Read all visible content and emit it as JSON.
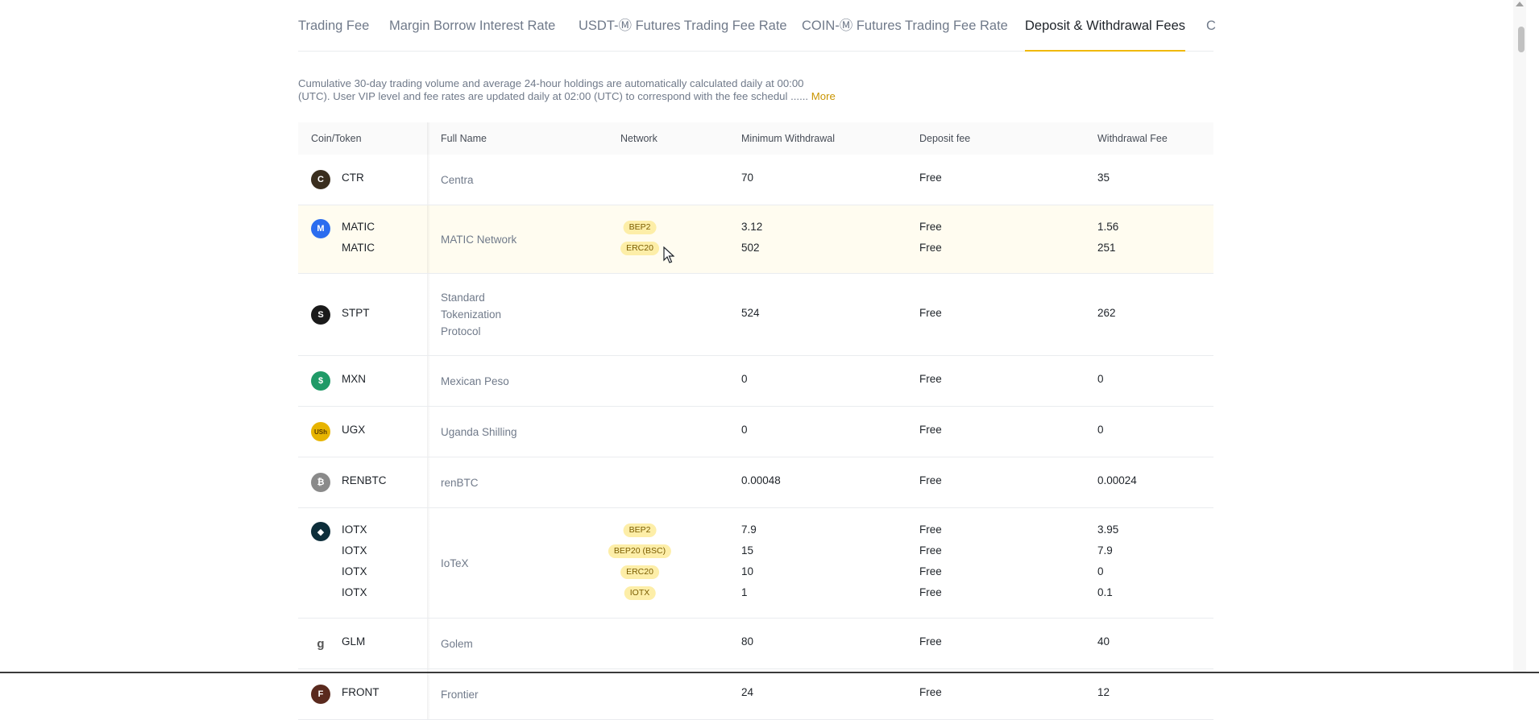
{
  "tabs": [
    {
      "label": "Trading Fee",
      "active": false
    },
    {
      "label": "Margin Borrow Interest Rate",
      "active": false
    },
    {
      "label": "USDT-Ⓜ Futures Trading Fee Rate",
      "active": false
    },
    {
      "label": "COIN-Ⓜ Futures Trading Fee Rate",
      "active": false
    },
    {
      "label": "Deposit & Withdrawal Fees",
      "active": true
    },
    {
      "label": "C",
      "active": false
    }
  ],
  "notice": {
    "line1": "Cumulative 30-day trading volume and average 24-hour holdings are automatically calculated daily at 00:00",
    "line2": "(UTC). User VIP level and fee rates are updated daily at 02:00 (UTC) to correspond with the fee schedul ......",
    "more_label": "More"
  },
  "table": {
    "headers": {
      "coin": "Coin/Token",
      "full_name": "Full Name",
      "network": "Network",
      "min_withdrawal": "Minimum Withdrawal",
      "deposit_fee": "Deposit fee",
      "withdrawal_fee": "Withdrawal Fee"
    },
    "rows": [
      {
        "icon": "ctr-coin-icon",
        "icon_color": "#3a2e1e",
        "icon_glyph": "C",
        "full_name": [
          "Centra"
        ],
        "entries": [
          {
            "coin": "CTR",
            "network": "",
            "min": "70",
            "dep": "Free",
            "wd": "35"
          }
        ]
      },
      {
        "icon": "matic-coin-icon",
        "icon_color": "#2b6def",
        "icon_glyph": "M",
        "full_name": [
          "MATIC Network"
        ],
        "hover": true,
        "entries": [
          {
            "coin": "MATIC",
            "network": "BEP2",
            "min": "3.12",
            "dep": "Free",
            "wd": "1.56"
          },
          {
            "coin": "MATIC",
            "network": "ERC20",
            "min": "502",
            "dep": "Free",
            "wd": "251"
          }
        ]
      },
      {
        "icon": "stpt-coin-icon",
        "icon_color": "#1a1a1a",
        "icon_glyph": "S",
        "full_name": [
          "Standard",
          "Tokenization",
          "Protocol"
        ],
        "entries": [
          {
            "coin": "STPT",
            "network": "",
            "min": "524",
            "dep": "Free",
            "wd": "262"
          }
        ]
      },
      {
        "icon": "mxn-coin-icon",
        "icon_color": "#1f9a67",
        "icon_glyph": "$",
        "full_name": [
          "Mexican Peso"
        ],
        "entries": [
          {
            "coin": "MXN",
            "network": "",
            "min": "0",
            "dep": "Free",
            "wd": "0"
          }
        ]
      },
      {
        "icon": "ugx-coin-icon",
        "icon_color": "#e7b400",
        "icon_glyph": "USh",
        "full_name": [
          "Uganda Shilling"
        ],
        "entries": [
          {
            "coin": "UGX",
            "network": "",
            "min": "0",
            "dep": "Free",
            "wd": "0"
          }
        ]
      },
      {
        "icon": "renbtc-coin-icon",
        "icon_color": "#8a8a8a",
        "icon_glyph": "₿",
        "full_name": [
          "renBTC"
        ],
        "entries": [
          {
            "coin": "RENBTC",
            "network": "",
            "min": "0.00048",
            "dep": "Free",
            "wd": "0.00024"
          }
        ]
      },
      {
        "icon": "iotx-coin-icon",
        "icon_color": "#0d2e3a",
        "icon_glyph": "◆",
        "full_name": [
          "IoTeX"
        ],
        "entries": [
          {
            "coin": "IOTX",
            "network": "BEP2",
            "min": "7.9",
            "dep": "Free",
            "wd": "3.95"
          },
          {
            "coin": "IOTX",
            "network": "BEP20 (BSC)",
            "min": "15",
            "dep": "Free",
            "wd": "7.9"
          },
          {
            "coin": "IOTX",
            "network": "ERC20",
            "min": "10",
            "dep": "Free",
            "wd": "0"
          },
          {
            "coin": "IOTX",
            "network": "IOTX",
            "min": "1",
            "dep": "Free",
            "wd": "0.1"
          }
        ]
      },
      {
        "icon": "glm-coin-icon",
        "icon_color": "#ffffff",
        "icon_glyph": "g",
        "full_name": [
          "Golem"
        ],
        "entries": [
          {
            "coin": "GLM",
            "network": "",
            "min": "80",
            "dep": "Free",
            "wd": "40"
          }
        ]
      },
      {
        "icon": "front-coin-icon",
        "icon_color": "#5a2a1e",
        "icon_glyph": "F",
        "full_name": [
          "Frontier"
        ],
        "entries": [
          {
            "coin": "FRONT",
            "network": "",
            "min": "24",
            "dep": "Free",
            "wd": "12"
          }
        ]
      }
    ]
  }
}
